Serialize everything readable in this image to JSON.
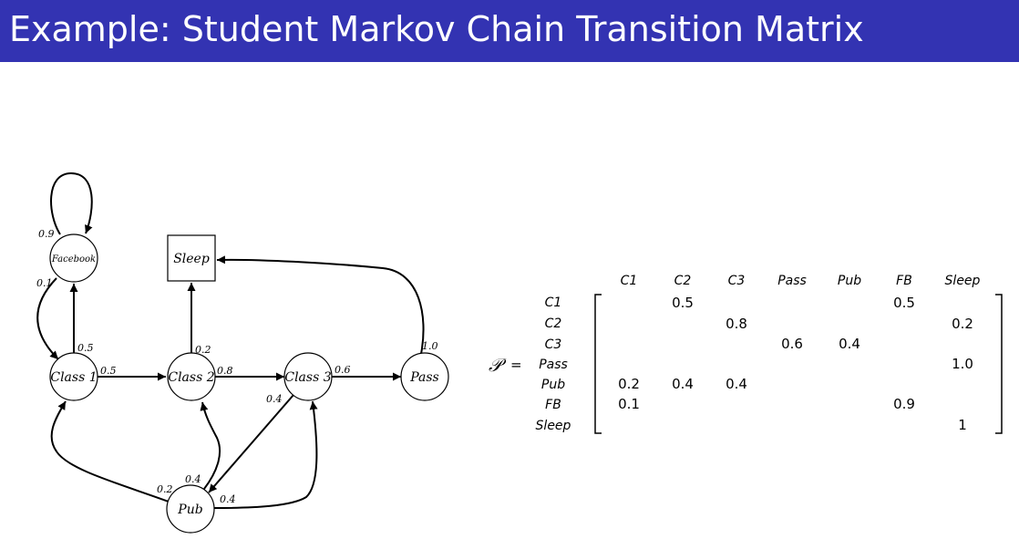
{
  "slide": {
    "title": "Example: Student Markov Chain Transition Matrix",
    "colors": {
      "title_bar": "#3333b2",
      "title_text": "#ffffff"
    }
  },
  "diagram": {
    "nodes": {
      "facebook": "Facebook",
      "sleep": "Sleep",
      "class1": "Class 1",
      "class2": "Class 2",
      "class3": "Class 3",
      "pass": "Pass",
      "pub": "Pub"
    },
    "edges": {
      "fb_self": "0.9",
      "fb_class1": "0.1",
      "class1_fb": "0.5",
      "class1_class2": "0.5",
      "class2_sleep": "0.2",
      "class2_class3": "0.8",
      "class3_pass": "0.6",
      "class3_pub": "0.4",
      "pass_sleep": "1.0",
      "pub_class1": "0.2",
      "pub_class2": "0.4",
      "pub_class3": "0.4"
    }
  },
  "matrix": {
    "symbol": "𝒫",
    "equals": "=",
    "columns": [
      "C1",
      "C2",
      "C3",
      "Pass",
      "Pub",
      "FB",
      "Sleep"
    ],
    "rows": [
      "C1",
      "C2",
      "C3",
      "Pass",
      "Pub",
      "FB",
      "Sleep"
    ],
    "cells": [
      [
        "",
        "0.5",
        "",
        "",
        "",
        "0.5",
        ""
      ],
      [
        "",
        "",
        "0.8",
        "",
        "",
        "",
        "0.2"
      ],
      [
        "",
        "",
        "",
        "0.6",
        "0.4",
        "",
        ""
      ],
      [
        "",
        "",
        "",
        "",
        "",
        "",
        "1.0"
      ],
      [
        "0.2",
        "0.4",
        "0.4",
        "",
        "",
        "",
        ""
      ],
      [
        "0.1",
        "",
        "",
        "",
        "",
        "0.9",
        ""
      ],
      [
        "",
        "",
        "",
        "",
        "",
        "",
        "1"
      ]
    ]
  }
}
